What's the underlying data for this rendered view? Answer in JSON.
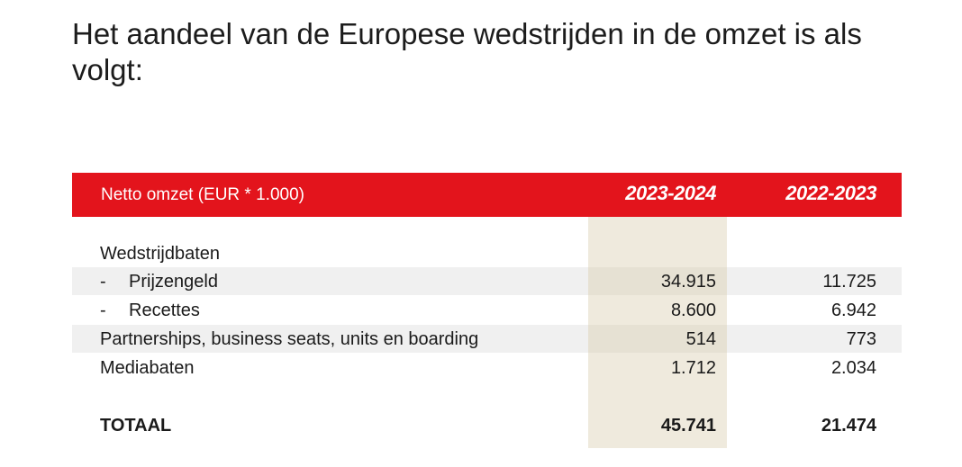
{
  "heading": "Het aandeel van de Europese wedstrijden in de omzet is als volgt:",
  "table": {
    "header_label": "Netto omzet (EUR * 1.000)",
    "col1_year": "2023-2024",
    "col2_year": "2022-2023",
    "accent_color": "#e3141c",
    "highlight_color": "#efeadd",
    "rows": [
      {
        "dash": "",
        "label": "Wedstrijdbaten",
        "v1": "",
        "v2": ""
      },
      {
        "dash": "-",
        "label": "Prijzengeld",
        "v1": "34.915",
        "v2": "11.725"
      },
      {
        "dash": "-",
        "label": "Recettes",
        "v1": "8.600",
        "v2": "6.942"
      },
      {
        "dash": "",
        "label": "Partnerships, business seats, units en boarding",
        "v1": "514",
        "v2": "773"
      },
      {
        "dash": "",
        "label": "Mediabaten",
        "v1": "1.712",
        "v2": "2.034"
      }
    ],
    "total": {
      "label": "TOTAAL",
      "v1": "45.741",
      "v2": "21.474"
    }
  }
}
